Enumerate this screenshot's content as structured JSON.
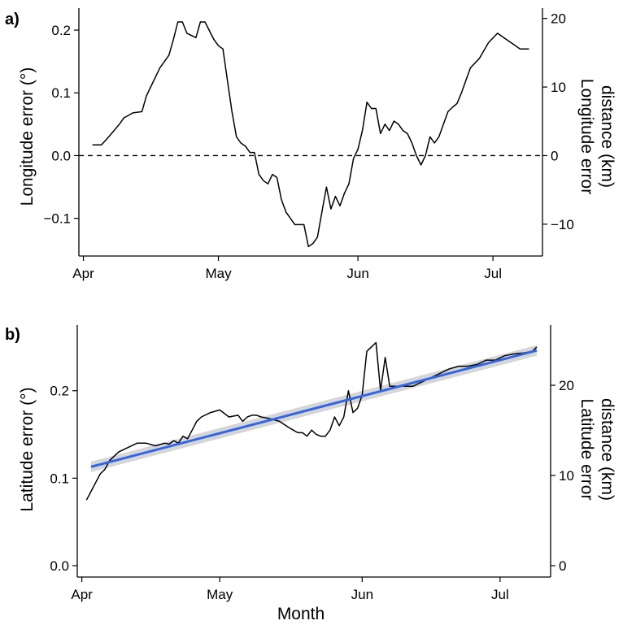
{
  "colors": {
    "series": "#000000",
    "trend": "#3366e6",
    "ribbon": "#cccccc"
  },
  "chart_data": [
    {
      "panel_label": "a)",
      "type": "line",
      "ylabel": "Longitude error (°)",
      "ylabel_right": "Longitude error\ndistance (km)",
      "xlabel": "",
      "x_ticks": [
        "Apr",
        "May",
        "Jun",
        "Jul"
      ],
      "y_ticks": [
        "0.2",
        "0.1",
        "0.0",
        "−0.1"
      ],
      "y_ticks_values": [
        0.2,
        0.1,
        0.0,
        -0.1
      ],
      "y2_ticks": [
        "20",
        "10",
        "0",
        "−10"
      ],
      "y2_ticks_values": [
        20,
        10,
        0,
        -10
      ],
      "xlim": [
        "2019-03-31",
        "2019-07-12"
      ],
      "ylim": [
        -0.16,
        0.235
      ],
      "reference_line": {
        "y": 0,
        "style": "dashed"
      },
      "series": [
        {
          "x": [
            "2019-04-03",
            "2019-04-05",
            "2019-04-06",
            "2019-04-07",
            "2019-04-09",
            "2019-04-10",
            "2019-04-12",
            "2019-04-14",
            "2019-04-15",
            "2019-04-16",
            "2019-04-17",
            "2019-04-18",
            "2019-04-20",
            "2019-04-21",
            "2019-04-22",
            "2019-04-23",
            "2019-04-24",
            "2019-04-26",
            "2019-04-27",
            "2019-04-28",
            "2019-04-30",
            "2019-05-01",
            "2019-05-02",
            "2019-05-03",
            "2019-05-04",
            "2019-05-05",
            "2019-05-06",
            "2019-05-07",
            "2019-05-08",
            "2019-05-09",
            "2019-05-10",
            "2019-05-11",
            "2019-05-12",
            "2019-05-13",
            "2019-05-14",
            "2019-05-15",
            "2019-05-16",
            "2019-05-17",
            "2019-05-18",
            "2019-05-20",
            "2019-05-21",
            "2019-05-22",
            "2019-05-23",
            "2019-05-24",
            "2019-05-25",
            "2019-05-26",
            "2019-05-27",
            "2019-05-28",
            "2019-05-29",
            "2019-05-30",
            "2019-05-31",
            "2019-06-01",
            "2019-06-02",
            "2019-06-03",
            "2019-06-04",
            "2019-06-05",
            "2019-06-06",
            "2019-06-07",
            "2019-06-08",
            "2019-06-09",
            "2019-06-10",
            "2019-06-11",
            "2019-06-12",
            "2019-06-13",
            "2019-06-14",
            "2019-06-15",
            "2019-06-16",
            "2019-06-17",
            "2019-06-18",
            "2019-06-19",
            "2019-06-21",
            "2019-06-22",
            "2019-06-23",
            "2019-06-24",
            "2019-06-25",
            "2019-06-26",
            "2019-06-28",
            "2019-06-30",
            "2019-07-02",
            "2019-07-04",
            "2019-07-06",
            "2019-07-07",
            "2019-07-08",
            "2019-07-09"
          ],
          "y": [
            0.017,
            0.017,
            0.025,
            0.033,
            0.05,
            0.06,
            0.068,
            0.07,
            0.095,
            0.11,
            0.125,
            0.14,
            0.16,
            0.185,
            0.213,
            0.213,
            0.195,
            0.188,
            0.213,
            0.213,
            0.185,
            0.175,
            0.17,
            0.12,
            0.07,
            0.03,
            0.02,
            0.015,
            0.005,
            0.005,
            -0.03,
            -0.04,
            -0.045,
            -0.03,
            -0.035,
            -0.07,
            -0.09,
            -0.1,
            -0.11,
            -0.11,
            -0.145,
            -0.14,
            -0.13,
            -0.09,
            -0.05,
            -0.085,
            -0.065,
            -0.08,
            -0.06,
            -0.045,
            -0.005,
            0.01,
            0.04,
            0.085,
            0.075,
            0.075,
            0.035,
            0.05,
            0.04,
            0.055,
            0.05,
            0.04,
            0.035,
            0.02,
            0.0,
            -0.015,
            0.0,
            0.03,
            0.02,
            0.03,
            0.07,
            0.077,
            0.083,
            0.1,
            0.12,
            0.14,
            0.155,
            0.18,
            0.195,
            0.185,
            0.175,
            0.17,
            0.17,
            0.17
          ]
        }
      ]
    },
    {
      "panel_label": "b)",
      "type": "line",
      "ylabel": "Latitude error (°)",
      "ylabel_right": "Latitude error\ndistance (km)",
      "xlabel": "Month",
      "x_ticks": [
        "Apr",
        "May",
        "Jun",
        "Jul"
      ],
      "y_ticks": [
        "0.2",
        "0.1",
        "0.0"
      ],
      "y_ticks_values": [
        0.2,
        0.1,
        0.0
      ],
      "y2_ticks": [
        "20",
        "10",
        "0"
      ],
      "y2_ticks_values": [
        20,
        10,
        0
      ],
      "xlim": [
        "2019-03-31",
        "2019-07-12"
      ],
      "ylim": [
        -0.013,
        0.275
      ],
      "series": [
        {
          "x": [
            "2019-04-02",
            "2019-04-03",
            "2019-04-04",
            "2019-04-05",
            "2019-04-06",
            "2019-04-07",
            "2019-04-09",
            "2019-04-11",
            "2019-04-13",
            "2019-04-15",
            "2019-04-17",
            "2019-04-19",
            "2019-04-20",
            "2019-04-21",
            "2019-04-22",
            "2019-04-23",
            "2019-04-24",
            "2019-04-25",
            "2019-04-26",
            "2019-04-27",
            "2019-04-29",
            "2019-05-01",
            "2019-05-03",
            "2019-05-05",
            "2019-05-06",
            "2019-05-07",
            "2019-05-08",
            "2019-05-09",
            "2019-05-10",
            "2019-05-12",
            "2019-05-14",
            "2019-05-16",
            "2019-05-17",
            "2019-05-18",
            "2019-05-19",
            "2019-05-20",
            "2019-05-21",
            "2019-05-22",
            "2019-05-23",
            "2019-05-24",
            "2019-05-25",
            "2019-05-26",
            "2019-05-27",
            "2019-05-28",
            "2019-05-29",
            "2019-05-30",
            "2019-05-31",
            "2019-06-01",
            "2019-06-02",
            "2019-06-03",
            "2019-06-04",
            "2019-06-05",
            "2019-06-06",
            "2019-06-07",
            "2019-06-08",
            "2019-06-09",
            "2019-06-10",
            "2019-06-12",
            "2019-06-14",
            "2019-06-16",
            "2019-06-18",
            "2019-06-20",
            "2019-06-22",
            "2019-06-24",
            "2019-06-26",
            "2019-06-28",
            "2019-06-30",
            "2019-07-02",
            "2019-07-04",
            "2019-07-06",
            "2019-07-08",
            "2019-07-09"
          ],
          "y": [
            0.075,
            0.085,
            0.095,
            0.105,
            0.11,
            0.12,
            0.13,
            0.135,
            0.14,
            0.14,
            0.137,
            0.14,
            0.139,
            0.143,
            0.14,
            0.148,
            0.145,
            0.155,
            0.165,
            0.17,
            0.175,
            0.178,
            0.17,
            0.172,
            0.165,
            0.17,
            0.172,
            0.172,
            0.17,
            0.168,
            0.165,
            0.158,
            0.155,
            0.152,
            0.152,
            0.148,
            0.155,
            0.15,
            0.148,
            0.148,
            0.155,
            0.17,
            0.16,
            0.17,
            0.2,
            0.175,
            0.18,
            0.195,
            0.245,
            0.25,
            0.255,
            0.2,
            0.238,
            0.205,
            0.205,
            0.205,
            0.205,
            0.205,
            0.21,
            0.215,
            0.22,
            0.225,
            0.228,
            0.228,
            0.23,
            0.235,
            0.235,
            0.24,
            0.242,
            0.243,
            0.245,
            0.25
          ]
        }
      ],
      "trend": {
        "x": [
          "2019-04-03",
          "2019-07-09"
        ],
        "y": [
          0.113,
          0.246
        ],
        "ci_halfwidth": 0.006
      }
    }
  ]
}
